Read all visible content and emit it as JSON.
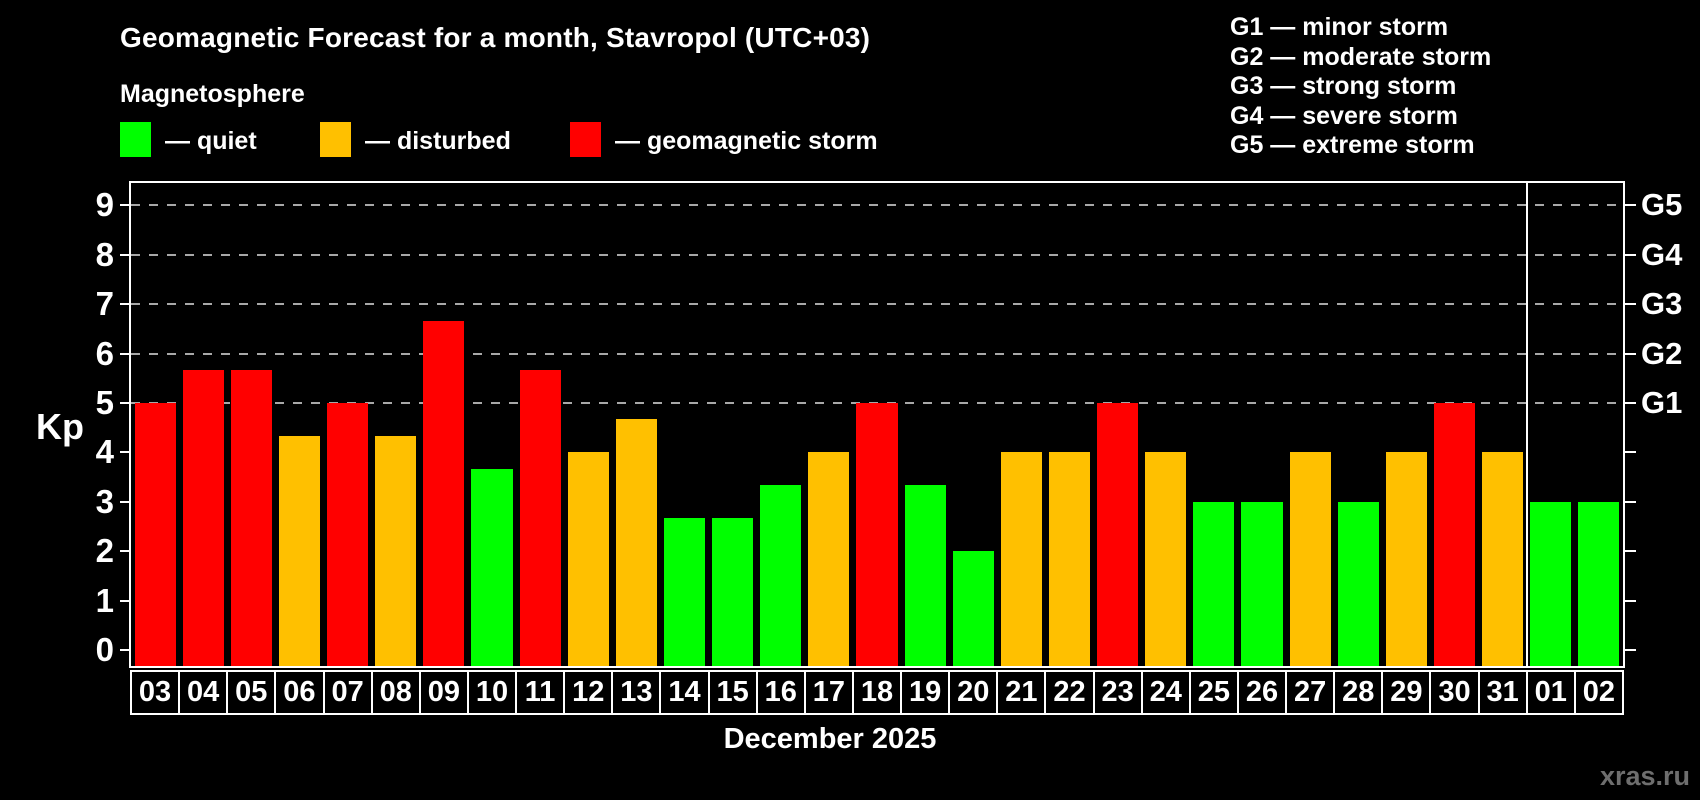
{
  "header": {
    "title": "Geomagnetic Forecast for a month, Stavropol (UTC+03)",
    "subtitle": "Magnetosphere",
    "legend": [
      {
        "key": "quiet",
        "label": "— quiet",
        "color": "#00ff00"
      },
      {
        "key": "disturbed",
        "label": "— disturbed",
        "color": "#ffc000"
      },
      {
        "key": "storm",
        "label": "— geomagnetic storm",
        "color": "#ff0000"
      }
    ],
    "g_scale_legend": [
      "G1 — minor storm",
      "G2 — moderate storm",
      "G3 — strong storm",
      "G4 — severe storm",
      "G5 — extreme storm"
    ]
  },
  "chart_data": {
    "type": "bar",
    "title": "Geomagnetic Forecast for a month, Stavropol (UTC+03)",
    "ylabel": "Kp",
    "xlabel": "December 2025",
    "ylim": [
      0,
      9
    ],
    "yticks": [
      0,
      1,
      2,
      3,
      4,
      5,
      6,
      7,
      8,
      9
    ],
    "gridlines_at": [
      5,
      6,
      7,
      8,
      9
    ],
    "grid": "horizontal dashed lines at Kp 5-9 (storm levels G1-G5)",
    "legend_position": "top-left",
    "right_axis_labels": [
      {
        "kp": 5,
        "label": "G1"
      },
      {
        "kp": 6,
        "label": "G2"
      },
      {
        "kp": 7,
        "label": "G3"
      },
      {
        "kp": 8,
        "label": "G4"
      },
      {
        "kp": 9,
        "label": "G5"
      }
    ],
    "colors": {
      "quiet": "#00ff00",
      "disturbed": "#ffc000",
      "storm": "#ff0000"
    },
    "categories": [
      "03",
      "04",
      "05",
      "06",
      "07",
      "08",
      "09",
      "10",
      "11",
      "12",
      "13",
      "14",
      "15",
      "16",
      "17",
      "18",
      "19",
      "20",
      "21",
      "22",
      "23",
      "24",
      "25",
      "26",
      "27",
      "28",
      "29",
      "30",
      "31",
      "01",
      "02"
    ],
    "values": [
      5,
      5.67,
      5.67,
      4.33,
      5,
      4.33,
      6.67,
      3.67,
      5.67,
      4,
      4.67,
      2.67,
      2.67,
      3.33,
      4,
      5,
      3.33,
      2,
      4,
      4,
      5,
      4,
      3,
      3,
      4,
      3,
      4,
      5,
      4,
      3,
      3
    ],
    "statuses": [
      "storm",
      "storm",
      "storm",
      "disturbed",
      "storm",
      "disturbed",
      "storm",
      "quiet",
      "storm",
      "disturbed",
      "disturbed",
      "quiet",
      "quiet",
      "quiet",
      "disturbed",
      "storm",
      "quiet",
      "quiet",
      "disturbed",
      "disturbed",
      "storm",
      "disturbed",
      "quiet",
      "quiet",
      "disturbed",
      "quiet",
      "disturbed",
      "storm",
      "disturbed",
      "quiet",
      "quiet"
    ],
    "month_separator_before": "01"
  },
  "footer": {
    "month_label": "December 2025",
    "watermark": "xras.ru"
  }
}
